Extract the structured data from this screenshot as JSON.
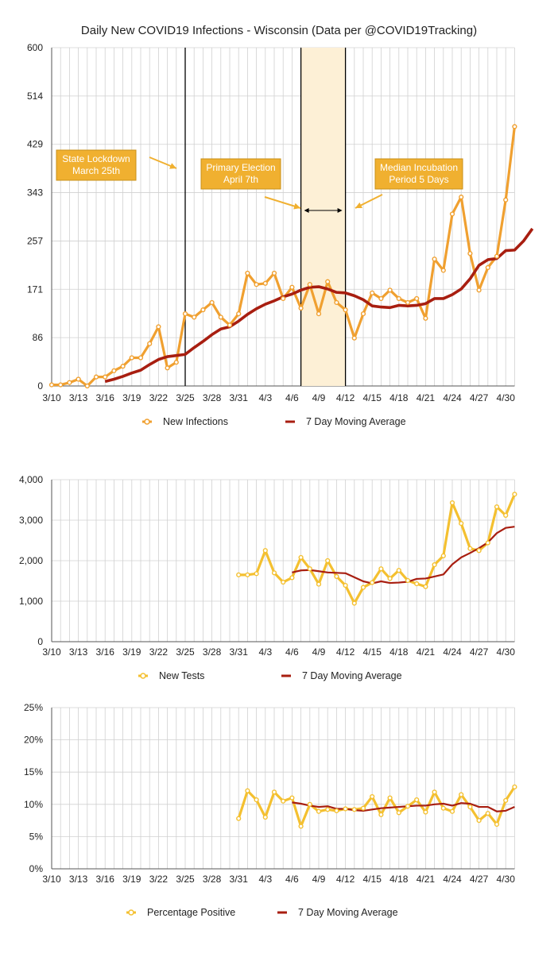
{
  "colors": {
    "orange": "#F0A030",
    "yellow": "#F4C030",
    "darkred": "#A81E10",
    "grid": "#d0d0d0",
    "shade": "#FDF0D6",
    "note_bg": "#F0B030",
    "note_border": "#C99018"
  },
  "chart_data": [
    {
      "type": "line",
      "title": "Daily New COVID19 Infections - Wisconsin (Data per @COVID19Tracking)",
      "xlabel": "",
      "ylabel": "",
      "ylim": [
        0,
        600
      ],
      "y_ticks": [
        "0",
        "86",
        "171",
        "257",
        "343",
        "429",
        "514",
        "600"
      ],
      "x_tick_labels": [
        "3/10",
        "3/13",
        "3/16",
        "3/19",
        "3/22",
        "3/25",
        "3/28",
        "3/31",
        "4/3",
        "4/6",
        "4/9",
        "4/12",
        "4/15",
        "4/18",
        "4/21",
        "4/24",
        "4/27",
        "4/30"
      ],
      "x_start": "3/10",
      "x_end": "5/1",
      "series": [
        {
          "name": "New Infections",
          "start_index": 0,
          "values": [
            2,
            2,
            6,
            12,
            0,
            16,
            16,
            27,
            35,
            50,
            50,
            75,
            105,
            32,
            42,
            128,
            122,
            135,
            148,
            122,
            108,
            128,
            200,
            180,
            182,
            200,
            155,
            175,
            138,
            180,
            128,
            185,
            148,
            135,
            85,
            128,
            165,
            155,
            170,
            155,
            148,
            155,
            120,
            225,
            205,
            305,
            335,
            235,
            170,
            210,
            230,
            330,
            460
          ]
        },
        {
          "name": "7 Day Moving Average",
          "start_index": 6,
          "values": [
            8,
            12,
            17,
            23,
            28,
            38,
            47,
            52,
            54,
            56,
            68,
            79,
            91,
            101,
            105,
            115,
            127,
            137,
            145,
            151,
            158,
            163,
            170,
            175,
            176,
            172,
            166,
            165,
            160,
            153,
            142,
            140,
            139,
            143,
            142,
            143,
            146,
            155,
            155,
            162,
            172,
            190,
            214,
            224,
            226,
            240,
            241,
            257,
            279
          ]
        }
      ],
      "annotations": [
        {
          "lines": [
            "State Lockdown",
            "March 25th"
          ]
        },
        {
          "lines": [
            "Primary Election",
            "April 7th"
          ]
        },
        {
          "lines": [
            "Median Incubation",
            "Period 5 Days"
          ]
        }
      ],
      "vertical_markers": [
        "3/25",
        "4/7",
        "4/12"
      ],
      "shaded_range": [
        "4/7",
        "4/12"
      ]
    },
    {
      "type": "line",
      "title": "",
      "ylim": [
        0,
        4000
      ],
      "y_ticks": [
        "0",
        "1,000",
        "2,000",
        "3,000",
        "4,000"
      ],
      "x_tick_labels": [
        "3/10",
        "3/13",
        "3/16",
        "3/19",
        "3/22",
        "3/25",
        "3/28",
        "3/31",
        "4/3",
        "4/6",
        "4/9",
        "4/12",
        "4/15",
        "4/18",
        "4/21",
        "4/24",
        "4/27",
        "4/30"
      ],
      "series": [
        {
          "name": "New Tests",
          "start_index": 21,
          "values": [
            1650,
            1650,
            1680,
            2250,
            1700,
            1470,
            1580,
            2080,
            1800,
            1420,
            2000,
            1610,
            1390,
            950,
            1340,
            1460,
            1800,
            1560,
            1760,
            1510,
            1430,
            1360,
            1900,
            2120,
            3430,
            2920,
            2300,
            2250,
            2440,
            3330,
            3120,
            3640
          ]
        },
        {
          "name": "7 Day Moving Average",
          "start_index": 27,
          "values": [
            1710,
            1760,
            1770,
            1740,
            1710,
            1700,
            1690,
            1590,
            1490,
            1440,
            1490,
            1450,
            1460,
            1480,
            1550,
            1560,
            1610,
            1660,
            1910,
            2080,
            2190,
            2310,
            2450,
            2680,
            2810,
            2840
          ]
        }
      ]
    },
    {
      "type": "line",
      "title": "",
      "ylim": [
        0,
        25
      ],
      "y_ticks": [
        "0%",
        "5%",
        "10%",
        "15%",
        "20%",
        "25%"
      ],
      "x_tick_labels": [
        "3/10",
        "3/13",
        "3/16",
        "3/19",
        "3/22",
        "3/25",
        "3/28",
        "3/31",
        "4/3",
        "4/6",
        "4/9",
        "4/12",
        "4/15",
        "4/18",
        "4/21",
        "4/24",
        "4/27",
        "4/30"
      ],
      "series": [
        {
          "name": "Percentage Positive",
          "start_index": 21,
          "values": [
            7.8,
            12.1,
            10.7,
            8.0,
            11.9,
            10.5,
            11.0,
            6.6,
            10.0,
            8.9,
            9.2,
            9.0,
            9.3,
            9.2,
            9.4,
            11.2,
            8.4,
            11.0,
            8.7,
            9.7,
            10.7,
            8.8,
            11.9,
            9.4,
            8.9,
            11.5,
            9.6,
            7.5,
            8.6,
            6.9,
            10.6,
            12.7
          ]
        },
        {
          "name": "7 Day Moving Average",
          "start_index": 27,
          "values": [
            10.3,
            10.1,
            9.8,
            9.6,
            9.7,
            9.3,
            9.3,
            9.1,
            9.0,
            9.2,
            9.4,
            9.5,
            9.6,
            9.7,
            9.8,
            9.8,
            10.0,
            10.1,
            9.8,
            10.2,
            10.1,
            9.6,
            9.6,
            8.9,
            9.0,
            9.6
          ]
        }
      ]
    }
  ]
}
